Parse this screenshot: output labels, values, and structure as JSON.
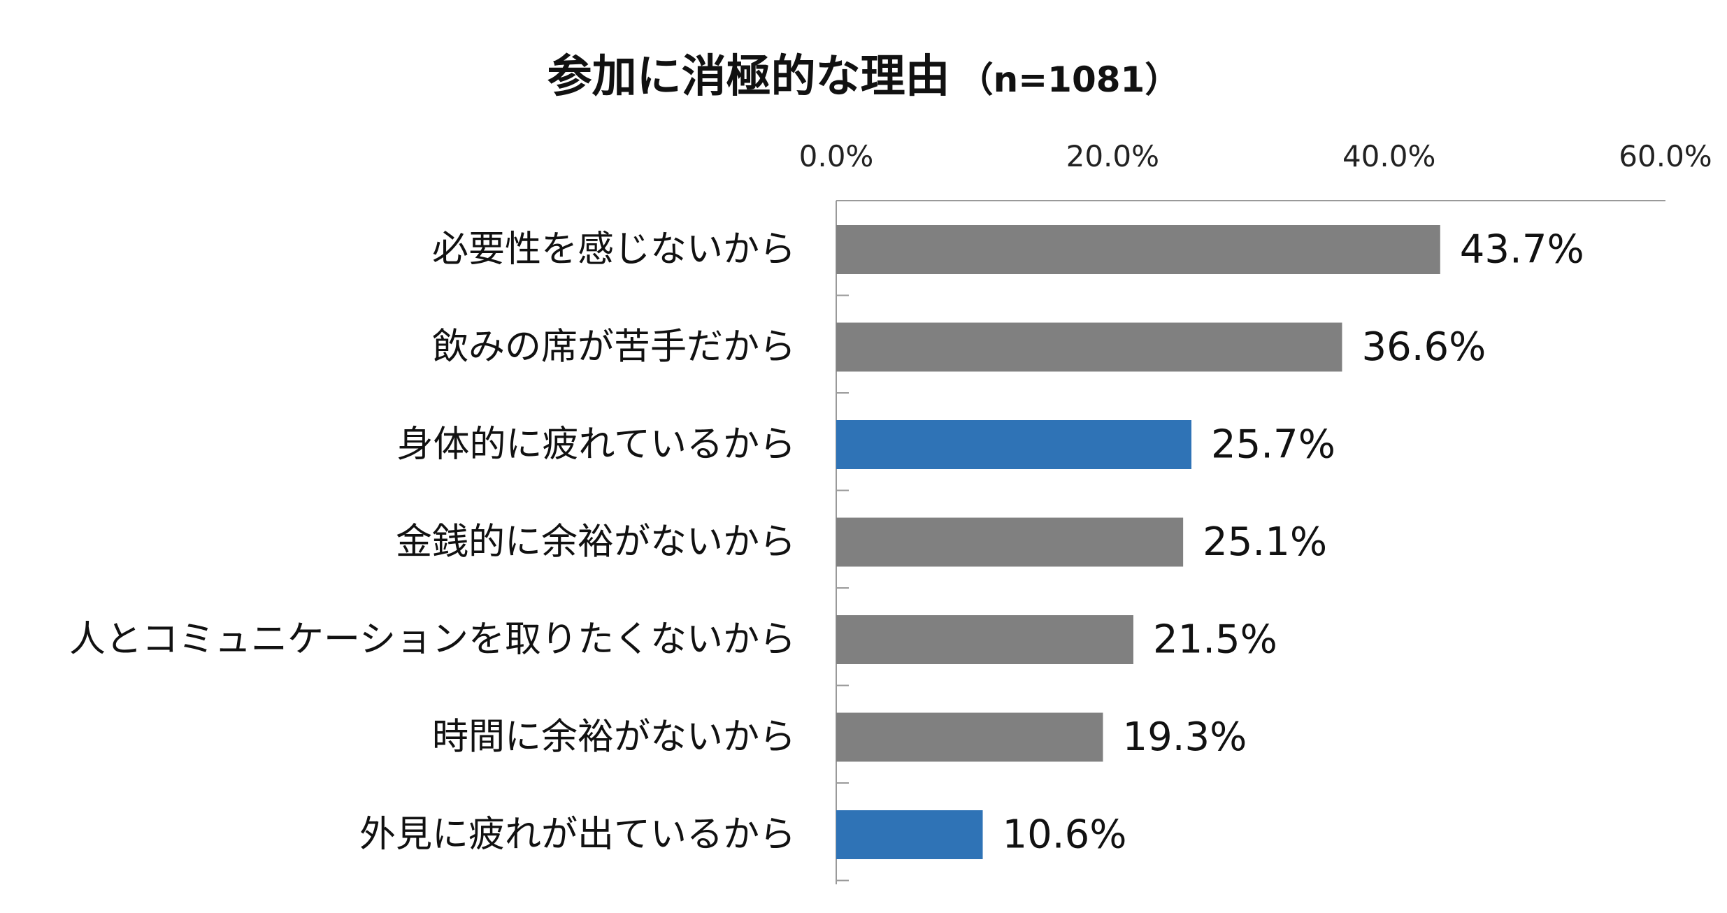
{
  "chart_data": {
    "type": "bar",
    "orientation": "horizontal",
    "title": "参加に消極的な理由",
    "subtitle": "（n=1081）",
    "categories": [
      "必要性を感じないから",
      "飲みの席が苦手だから",
      "身体的に疲れているから",
      "金銭的に余裕がないから",
      "人とコミュニケーションを取りたくないから",
      "時間に余裕がないから",
      "外見に疲れが出ているから"
    ],
    "values": [
      43.7,
      36.6,
      25.7,
      25.1,
      21.5,
      19.3,
      10.6
    ],
    "value_labels": [
      "43.7%",
      "36.6%",
      "25.7%",
      "25.1%",
      "21.5%",
      "19.3%",
      "10.6%"
    ],
    "highlighted": [
      false,
      false,
      true,
      false,
      false,
      false,
      true
    ],
    "xlim": [
      0,
      60
    ],
    "x_ticks": [
      0,
      20,
      40,
      60
    ],
    "x_tick_labels": [
      "0.0%",
      "20.0%",
      "40.0%",
      "60.0%"
    ],
    "xaxis_position": "top",
    "xlabel": "",
    "ylabel": "",
    "grid": false,
    "legend": "none"
  },
  "colors": {
    "bar_default": "#808080",
    "bar_highlight": "#2f73b6",
    "axis": "#9a9a9a",
    "text": "#111111"
  }
}
